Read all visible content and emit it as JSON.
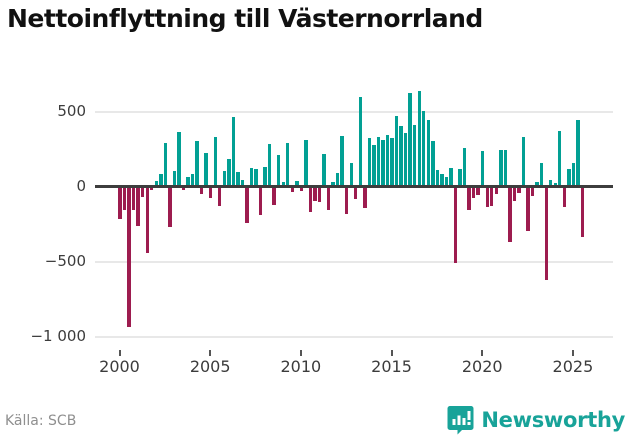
{
  "title": "Nettoinflyttning till Västernorrland",
  "source": "Källa: SCB",
  "brand": {
    "name": "Newsworthy",
    "color": "#18a399"
  },
  "colors": {
    "positive": "#02a094",
    "negative": "#9d1c4f",
    "axis": "#3d3d3d",
    "grid": "#e8e8e8"
  },
  "chart_data": {
    "type": "bar",
    "title": "Nettoinflyttning till Västernorrland",
    "xlabel": "",
    "ylabel": "",
    "frequency": "quarterly",
    "x_start": "2000-Q1",
    "x_end": "2025-Q3",
    "x_tick_years": [
      2000,
      2005,
      2010,
      2015,
      2020,
      2025
    ],
    "y_ticks": [
      500,
      0,
      -500,
      -1000
    ],
    "y_tick_labels": [
      "500",
      "0",
      "−500",
      "−1 000"
    ],
    "ylim": [
      -1050,
      710
    ],
    "grid": true,
    "legend": false,
    "series": [
      {
        "name": "Nettoinflyttning",
        "values": [
          -210,
          -155,
          -930,
          -150,
          -260,
          -65,
          -440,
          -20,
          40,
          90,
          295,
          -265,
          110,
          370,
          -20,
          65,
          90,
          310,
          -45,
          230,
          -70,
          335,
          -125,
          110,
          185,
          465,
          100,
          50,
          -240,
          130,
          120,
          -185,
          135,
          290,
          -120,
          215,
          35,
          295,
          -30,
          40,
          -25,
          315,
          -165,
          -90,
          -100,
          220,
          -150,
          35,
          95,
          340,
          -180,
          160,
          -80,
          600,
          -140,
          330,
          280,
          335,
          315,
          350,
          325,
          475,
          405,
          360,
          630,
          415,
          640,
          510,
          450,
          310,
          115,
          90,
          70,
          125,
          -505,
          120,
          260,
          -155,
          -75,
          -55,
          240,
          -135,
          -125,
          -45,
          250,
          245,
          -365,
          -90,
          -40,
          335,
          -290,
          -60,
          35,
          160,
          -620,
          50,
          30,
          375,
          -130,
          120,
          160,
          450,
          -330
        ]
      }
    ]
  }
}
